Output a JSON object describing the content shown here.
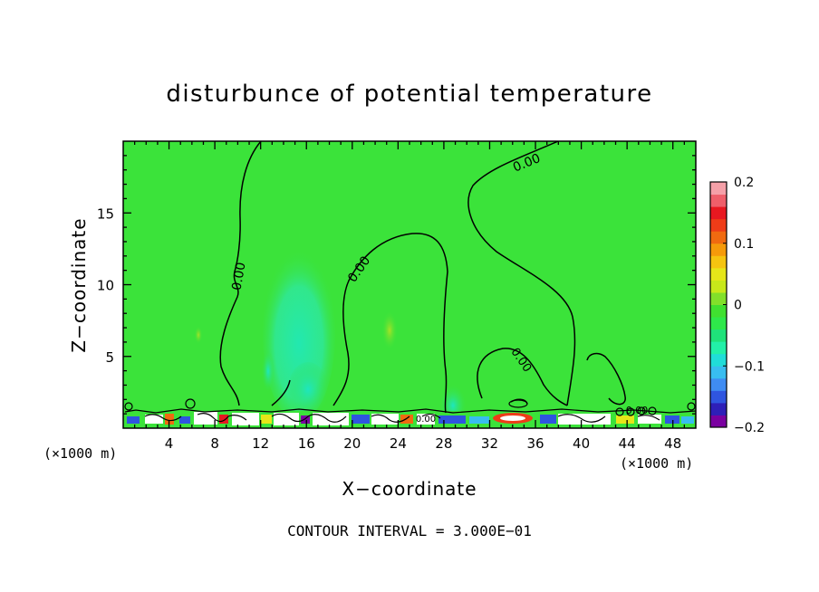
{
  "chart_data": {
    "type": "heatmap",
    "title": "disturbunce of potential temperature",
    "xlabel": "X−coordinate",
    "ylabel": "Z−coordinate",
    "x_unit_left": "(×1000 m)",
    "x_unit_right": "(×1000 m)",
    "xlim": [
      0,
      50
    ],
    "ylim": [
      0,
      20
    ],
    "x_ticks": [
      4,
      8,
      12,
      16,
      20,
      24,
      28,
      32,
      36,
      40,
      44,
      48
    ],
    "x_tick_labels": [
      "4",
      "8",
      "12",
      "16",
      "20",
      "24",
      "28",
      "32",
      "36",
      "40",
      "44",
      "48"
    ],
    "y_ticks": [
      5,
      10,
      15
    ],
    "y_tick_labels": [
      "5",
      "10",
      "15"
    ],
    "contour_labels": [
      "0.00",
      "0.00",
      "0.00",
      "0.00",
      "0.00",
      "0.00"
    ],
    "footer": "CONTOUR INTERVAL = 3.000E−01",
    "colorbar": {
      "min": -0.2,
      "max": 0.2,
      "tick_values": [
        0.2,
        0.1,
        0,
        -0.1,
        -0.2
      ],
      "tick_labels": [
        "0.2",
        "0.1",
        "0",
        "−0.1",
        "−0.2"
      ],
      "colors": [
        "#7a00a0",
        "#2e1fb8",
        "#2f55e0",
        "#3f8cf2",
        "#38bdf0",
        "#20ddd8",
        "#22f0a8",
        "#1fe27a",
        "#2ee84a",
        "#40e030",
        "#82e02a",
        "#c8e81a",
        "#e6e619",
        "#f5c410",
        "#f59a0a",
        "#f06a10",
        "#ee3c18",
        "#e81820",
        "#ef5f6a",
        "#f5a0a8"
      ]
    },
    "background_color": "#3be33a"
  }
}
